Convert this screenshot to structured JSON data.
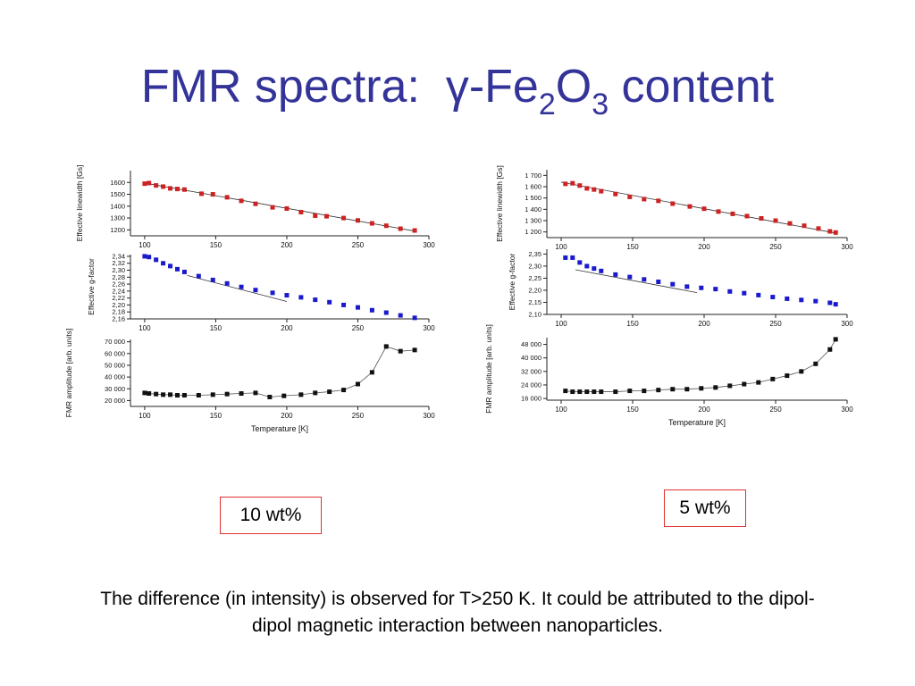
{
  "slide": {
    "title_main": "FMR spectra:",
    "title_formula": {
      "a": "γ-Fe",
      "sub1": "2",
      "b": "O",
      "sub2": "3",
      "c": " content"
    },
    "label_left": "10 wt%",
    "label_right": "5 wt%",
    "caption_line1": "The difference (in intensity) is observed for T>250 K. It could be attributed to the dipol-",
    "caption_line2": "dipol magnetic interaction between nanoparticles."
  },
  "colors": {
    "title": "#333399",
    "red": "#cc2222",
    "blue": "#1a1acc",
    "black": "#111111",
    "box_border": "#e03030"
  },
  "chart_data": [
    {
      "type": "scatter",
      "group": "10 wt%",
      "panel": "linewidth",
      "ylabel": "Effective linewidth [Gs]",
      "xlim": [
        90,
        300
      ],
      "ylim": [
        1150,
        1700
      ],
      "xticks": [
        100,
        150,
        200,
        250,
        300
      ],
      "yticks": [
        1200,
        1300,
        1400,
        1500,
        1600
      ],
      "ytick_labels": [
        "1200",
        "1300",
        "1400",
        "1500",
        "1600"
      ],
      "marker_color": "red",
      "x": [
        100,
        103,
        108,
        113,
        118,
        123,
        128,
        140,
        148,
        158,
        168,
        178,
        190,
        200,
        210,
        220,
        228,
        240,
        250,
        260,
        270,
        280,
        290
      ],
      "y": [
        1590,
        1595,
        1575,
        1565,
        1550,
        1545,
        1540,
        1505,
        1500,
        1475,
        1445,
        1420,
        1390,
        1380,
        1350,
        1320,
        1315,
        1300,
        1280,
        1255,
        1235,
        1210,
        1195
      ],
      "fit": {
        "x": [
          100,
          290
        ],
        "y": [
          1595,
          1190
        ]
      }
    },
    {
      "type": "scatter",
      "group": "10 wt%",
      "panel": "g-factor",
      "ylabel": "Effective g-factor",
      "xlim": [
        90,
        300
      ],
      "ylim": [
        2.16,
        2.345
      ],
      "xticks": [
        100,
        150,
        200,
        250,
        300
      ],
      "yticks": [
        2.16,
        2.18,
        2.2,
        2.22,
        2.24,
        2.26,
        2.28,
        2.3,
        2.32,
        2.34
      ],
      "ytick_labels": [
        "2,16",
        "2,18",
        "2,20",
        "2,22",
        "2,24",
        "2,26",
        "2,28",
        "2,30",
        "2,32",
        "2,34"
      ],
      "marker_color": "blue",
      "x": [
        100,
        103,
        108,
        113,
        118,
        123,
        128,
        138,
        148,
        158,
        168,
        178,
        190,
        200,
        210,
        220,
        230,
        240,
        250,
        260,
        270,
        280,
        290
      ],
      "y": [
        2.34,
        2.338,
        2.33,
        2.32,
        2.312,
        2.303,
        2.295,
        2.283,
        2.272,
        2.262,
        2.252,
        2.243,
        2.235,
        2.228,
        2.222,
        2.215,
        2.208,
        2.2,
        2.193,
        2.185,
        2.178,
        2.17,
        2.163
      ],
      "fit": {
        "x": [
          130,
          200
        ],
        "y": [
          2.285,
          2.21
        ]
      }
    },
    {
      "type": "line",
      "group": "10 wt%",
      "panel": "amplitude",
      "ylabel": "FMR amplitude [arb. units]",
      "xlabel": "Temperature [K]",
      "xlim": [
        90,
        300
      ],
      "ylim": [
        15000,
        72000
      ],
      "xticks": [
        100,
        150,
        200,
        250,
        300
      ],
      "yticks": [
        20000,
        30000,
        40000,
        50000,
        60000,
        70000
      ],
      "ytick_labels": [
        "20 000",
        "30 000",
        "40 000",
        "50 000",
        "60 000",
        "70 000"
      ],
      "marker_color": "black",
      "x": [
        100,
        103,
        108,
        113,
        118,
        123,
        128,
        138,
        148,
        158,
        168,
        178,
        188,
        198,
        210,
        220,
        230,
        240,
        250,
        260,
        270,
        280,
        290
      ],
      "y": [
        26500,
        26000,
        25500,
        25000,
        25000,
        24500,
        24500,
        24500,
        25000,
        25500,
        26000,
        26500,
        23000,
        24000,
        25000,
        26500,
        27500,
        29000,
        34000,
        44000,
        66000,
        62000,
        63000
      ]
    },
    {
      "type": "scatter",
      "group": "5 wt%",
      "panel": "linewidth",
      "ylabel": "Effective linewidth [Gs]",
      "xlim": [
        90,
        300
      ],
      "ylim": [
        1150,
        1750
      ],
      "xticks": [
        100,
        150,
        200,
        250,
        300
      ],
      "yticks": [
        1200,
        1300,
        1400,
        1500,
        1600,
        1700
      ],
      "ytick_labels": [
        "1 200",
        "1 300",
        "1 400",
        "1 500",
        "1 600",
        "1 700"
      ],
      "marker_color": "red",
      "x": [
        103,
        108,
        113,
        118,
        123,
        128,
        138,
        148,
        158,
        168,
        178,
        190,
        200,
        210,
        220,
        230,
        240,
        250,
        260,
        270,
        280,
        288,
        292
      ],
      "y": [
        1625,
        1630,
        1610,
        1585,
        1575,
        1560,
        1535,
        1510,
        1490,
        1475,
        1450,
        1425,
        1405,
        1380,
        1360,
        1340,
        1320,
        1300,
        1275,
        1255,
        1230,
        1205,
        1195
      ],
      "fit": {
        "x": [
          100,
          292
        ],
        "y": [
          1640,
          1190
        ]
      }
    },
    {
      "type": "scatter",
      "group": "5 wt%",
      "panel": "g-factor",
      "ylabel": "Effective g-factor",
      "xlim": [
        90,
        300
      ],
      "ylim": [
        2.1,
        2.37
      ],
      "xticks": [
        100,
        150,
        200,
        250,
        300
      ],
      "yticks": [
        2.1,
        2.15,
        2.2,
        2.25,
        2.3,
        2.35
      ],
      "ytick_labels": [
        "2,10",
        "2,15",
        "2,20",
        "2,25",
        "2,30",
        "2,35"
      ],
      "marker_color": "blue",
      "x": [
        103,
        108,
        113,
        118,
        123,
        128,
        138,
        148,
        158,
        168,
        178,
        188,
        198,
        208,
        218,
        228,
        238,
        248,
        258,
        268,
        278,
        288,
        292
      ],
      "y": [
        2.335,
        2.335,
        2.315,
        2.3,
        2.29,
        2.28,
        2.265,
        2.255,
        2.245,
        2.235,
        2.225,
        2.215,
        2.21,
        2.205,
        2.195,
        2.188,
        2.18,
        2.172,
        2.165,
        2.16,
        2.155,
        2.148,
        2.142
      ],
      "fit": {
        "x": [
          110,
          195
        ],
        "y": [
          2.285,
          2.19
        ]
      }
    },
    {
      "type": "line",
      "group": "5 wt%",
      "panel": "amplitude",
      "ylabel": "FMR amplitude [arb. units]",
      "xlabel": "Temperature [K]",
      "xlim": [
        90,
        300
      ],
      "ylim": [
        15000,
        52000
      ],
      "xticks": [
        100,
        150,
        200,
        250,
        300
      ],
      "yticks": [
        16000,
        24000,
        32000,
        40000,
        48000
      ],
      "ytick_labels": [
        "16 000",
        "24 000",
        "32 000",
        "40 000",
        "48 000"
      ],
      "marker_color": "black",
      "x": [
        103,
        108,
        113,
        118,
        123,
        128,
        138,
        148,
        158,
        168,
        178,
        188,
        198,
        208,
        218,
        228,
        238,
        248,
        258,
        268,
        278,
        288,
        292
      ],
      "y": [
        20500,
        20000,
        20000,
        20000,
        20000,
        20000,
        20000,
        20500,
        20500,
        21000,
        21500,
        21500,
        22000,
        22500,
        23500,
        24500,
        25500,
        27500,
        29500,
        32000,
        36500,
        45000,
        51000
      ]
    }
  ]
}
